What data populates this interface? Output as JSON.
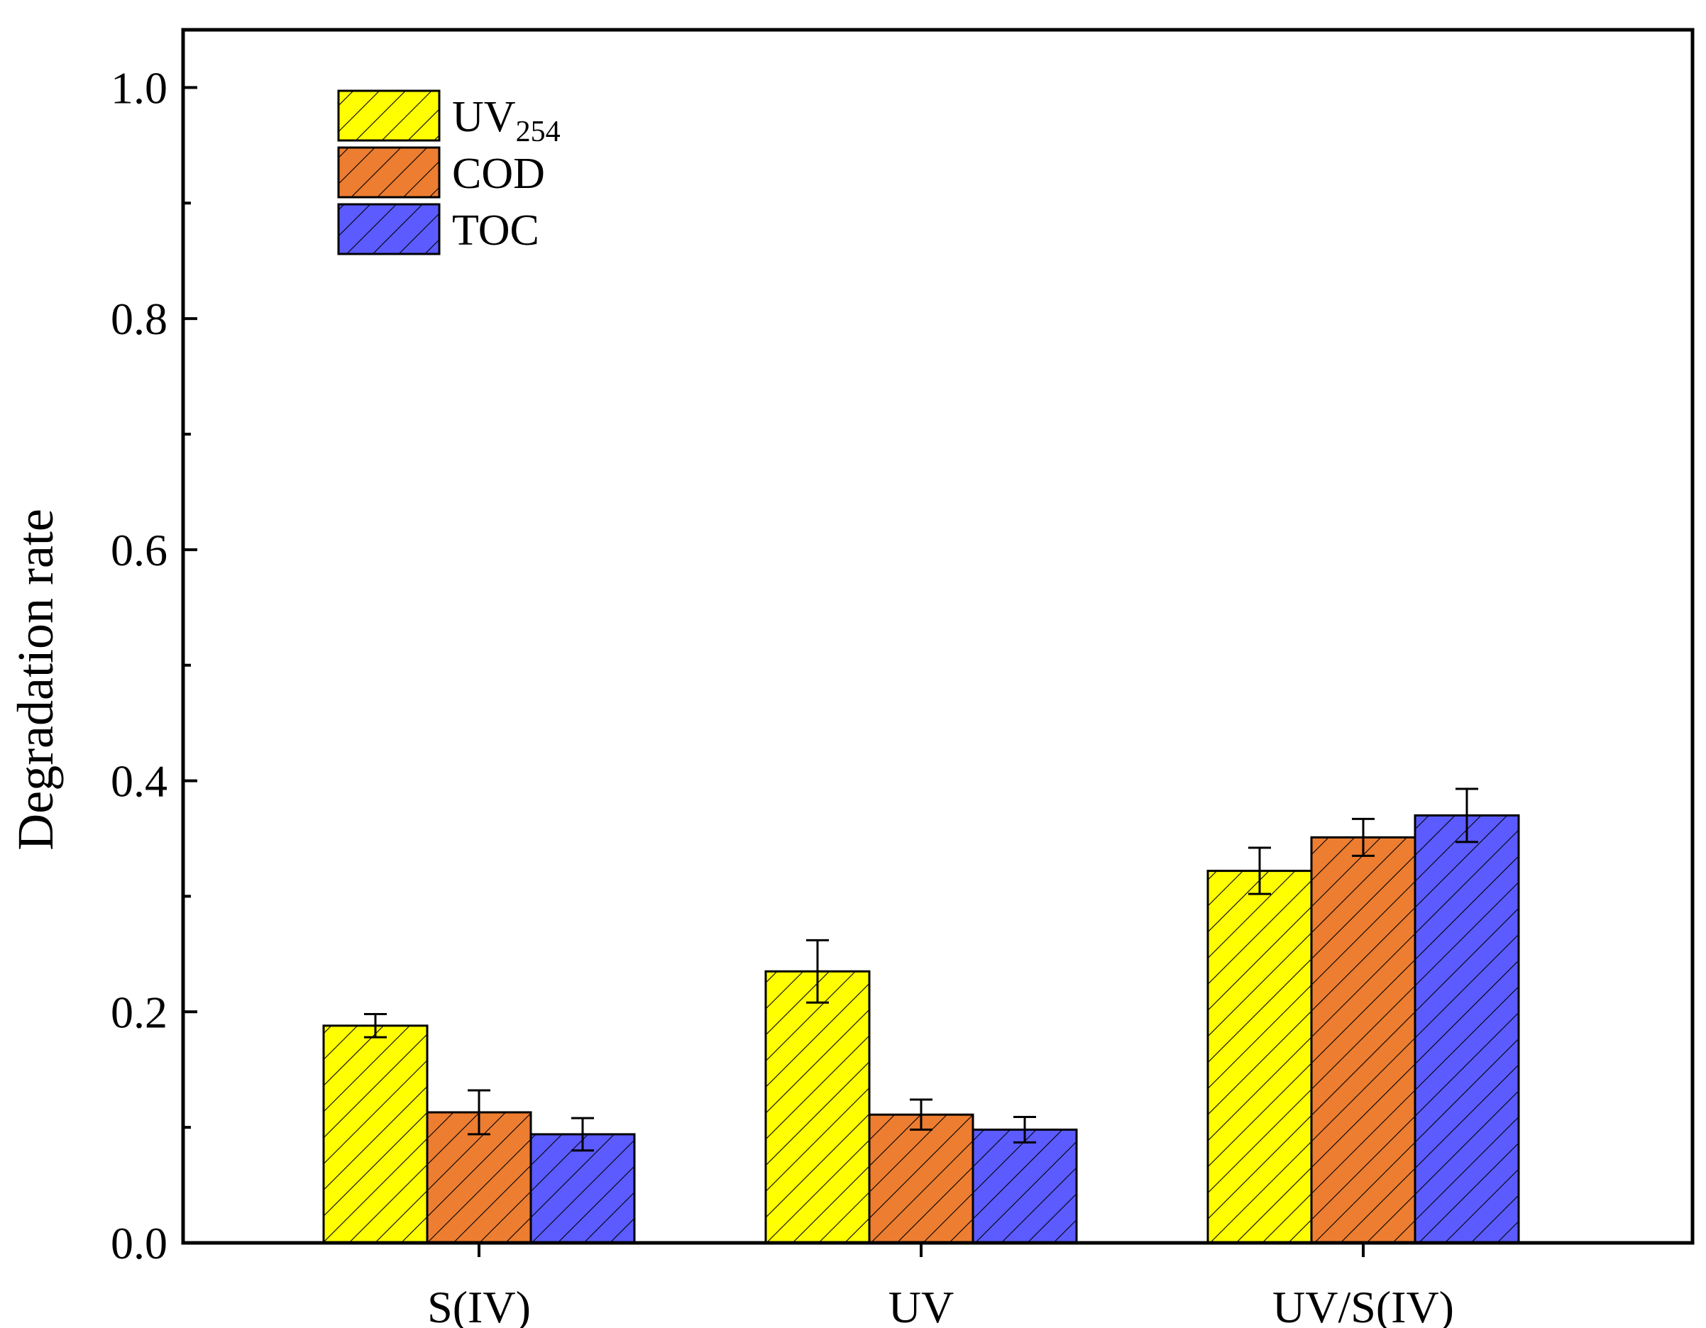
{
  "chart_data": {
    "type": "bar",
    "title": "",
    "xlabel": "",
    "ylabel": "Degradation rate",
    "ylim": [
      0.0,
      1.05
    ],
    "yticks": [
      "0.0",
      "0.2",
      "0.4",
      "0.6",
      "0.8",
      "1.0"
    ],
    "ytick_values": [
      0.0,
      0.2,
      0.4,
      0.6,
      0.8,
      1.0
    ],
    "grid": false,
    "legend_position": "top-left",
    "categories": [
      "S(IV)",
      "UV",
      "UV/S(IV)"
    ],
    "series": [
      {
        "name": "UV",
        "name_sub": "254",
        "color": "#FFFF00",
        "values": [
          0.188,
          0.235,
          0.322
        ],
        "errors": [
          0.01,
          0.027,
          0.02
        ]
      },
      {
        "name": "COD",
        "name_sub": "",
        "color": "#ED7D31",
        "values": [
          0.113,
          0.111,
          0.351
        ],
        "errors": [
          0.019,
          0.013,
          0.016
        ]
      },
      {
        "name": "TOC",
        "name_sub": "",
        "color": "#5B5BFF",
        "values": [
          0.094,
          0.098,
          0.37
        ],
        "errors": [
          0.014,
          0.011,
          0.023
        ]
      }
    ]
  }
}
